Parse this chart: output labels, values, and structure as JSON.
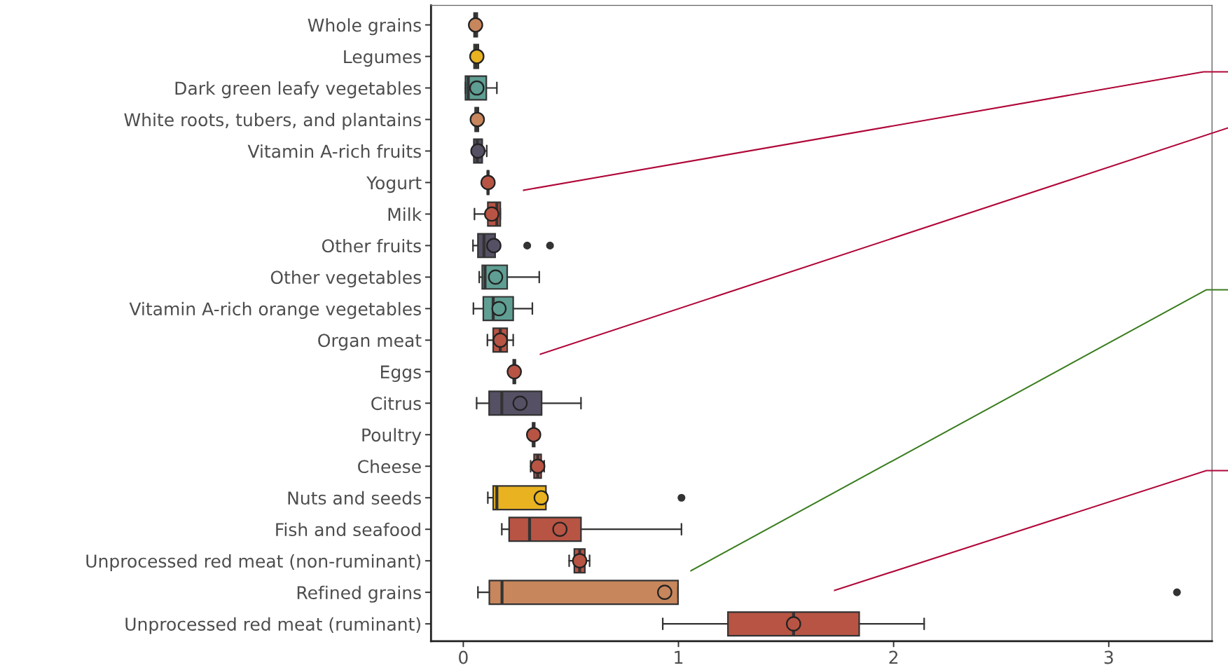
{
  "chart_data": {
    "type": "box",
    "orientation": "horizontal",
    "categories": [
      "Whole grains",
      "Legumes",
      "Dark green leafy vegetables",
      "White roots, tubers, and plantains",
      "Vitamin A-rich fruits",
      "Yogurt",
      "Milk",
      "Other fruits",
      "Other vegetables",
      "Vitamin A-rich orange vegetables",
      "Organ meat",
      "Eggs",
      "Citrus",
      "Poultry",
      "Cheese",
      "Nuts and seeds",
      "Fish and seafood",
      "Unprocessed red meat (non-ruminant)",
      "Refined grains",
      "Unprocessed red meat (ruminant)"
    ],
    "colors": [
      "#c8865c",
      "#e8b220",
      "#5f9e93",
      "#c8865c",
      "#565064",
      "#b85444",
      "#b85444",
      "#565064",
      "#5f9e93",
      "#5f9e93",
      "#b85444",
      "#b85444",
      "#565064",
      "#b85444",
      "#b85444",
      "#e8b220",
      "#b85444",
      "#b85444",
      "#c8865c",
      "#b85444"
    ],
    "boxes": [
      {
        "low": 0.05,
        "q1": 0.05,
        "median": 0.055,
        "q3": 0.065,
        "high": 0.07,
        "mean": 0.057
      },
      {
        "low": 0.05,
        "q1": 0.05,
        "median": 0.06,
        "q3": 0.07,
        "high": 0.077,
        "mean": 0.063
      },
      {
        "low": 0.01,
        "q1": 0.01,
        "median": 0.023,
        "q3": 0.107,
        "high": 0.156,
        "mean": 0.063
      },
      {
        "low": 0.05,
        "q1": 0.055,
        "median": 0.065,
        "q3": 0.07,
        "high": 0.075,
        "mean": 0.065
      },
      {
        "low": 0.049,
        "q1": 0.049,
        "median": 0.065,
        "q3": 0.088,
        "high": 0.109,
        "mean": 0.068
      },
      {
        "low": 0.109,
        "q1": 0.112,
        "median": 0.115,
        "q3": 0.118,
        "high": 0.123,
        "mean": 0.115
      },
      {
        "low": 0.052,
        "q1": 0.114,
        "median": 0.156,
        "q3": 0.172,
        "high": 0.172,
        "mean": 0.132
      },
      {
        "low": 0.045,
        "q1": 0.068,
        "median": 0.096,
        "q3": 0.148,
        "high": 0.148,
        "mean": 0.142,
        "outliers": [
          0.297,
          0.403
        ]
      },
      {
        "low": 0.074,
        "q1": 0.088,
        "median": 0.101,
        "q3": 0.204,
        "high": 0.353,
        "mean": 0.15
      },
      {
        "low": 0.047,
        "q1": 0.093,
        "median": 0.139,
        "q3": 0.232,
        "high": 0.321,
        "mean": 0.166
      },
      {
        "low": 0.112,
        "q1": 0.139,
        "median": 0.172,
        "q3": 0.204,
        "high": 0.232,
        "mean": 0.172
      },
      {
        "low": 0.226,
        "q1": 0.232,
        "median": 0.237,
        "q3": 0.242,
        "high": 0.248,
        "mean": 0.237
      },
      {
        "low": 0.062,
        "q1": 0.12,
        "median": 0.179,
        "q3": 0.364,
        "high": 0.547,
        "mean": 0.264
      },
      {
        "low": 0.316,
        "q1": 0.322,
        "median": 0.327,
        "q3": 0.332,
        "high": 0.338,
        "mean": 0.327
      },
      {
        "low": 0.313,
        "q1": 0.329,
        "median": 0.346,
        "q3": 0.362,
        "high": 0.376,
        "mean": 0.346
      },
      {
        "low": 0.114,
        "q1": 0.139,
        "median": 0.156,
        "q3": 0.384,
        "high": 0.384,
        "mean": 0.362,
        "outliers": [
          1.014
        ]
      },
      {
        "low": 0.179,
        "q1": 0.213,
        "median": 0.308,
        "q3": 0.547,
        "high": 1.014,
        "mean": 0.449
      },
      {
        "low": 0.492,
        "q1": 0.516,
        "median": 0.541,
        "q3": 0.565,
        "high": 0.587,
        "mean": 0.541
      },
      {
        "low": 0.068,
        "q1": 0.121,
        "median": 0.18,
        "q3": 0.998,
        "high": 0.998,
        "mean": 0.936,
        "outliers": [
          3.317
        ]
      },
      {
        "low": 0.927,
        "q1": 1.23,
        "median": 1.535,
        "q3": 1.84,
        "high": 2.142,
        "mean": 1.535
      }
    ],
    "xlim": [
      -0.15,
      3.48
    ],
    "xticks": [
      0,
      1,
      2,
      3
    ],
    "grid": false,
    "legend": false,
    "marker": "circle"
  }
}
